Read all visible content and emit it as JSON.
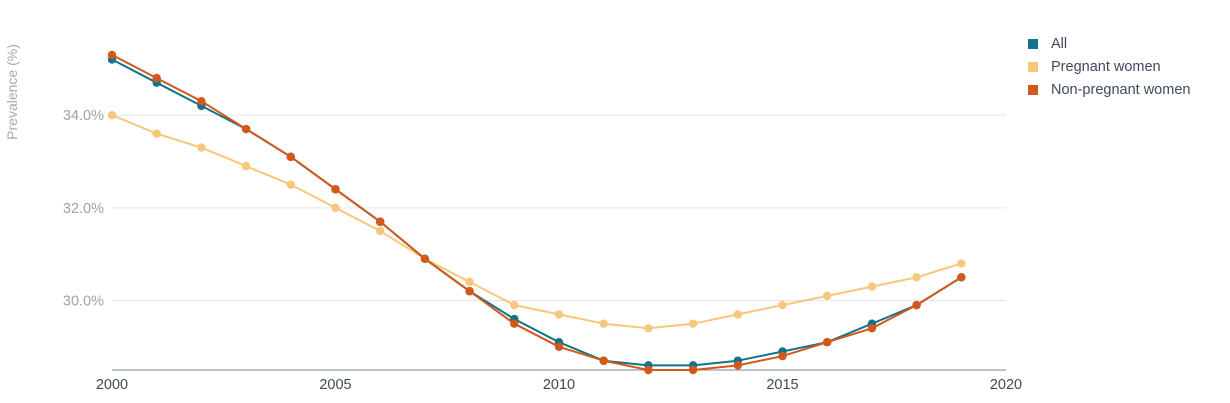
{
  "chart_data": {
    "type": "line",
    "ylabel": "Prevalence (%)",
    "xlabel": "",
    "xlim": [
      2000,
      2020
    ],
    "ylim": [
      28.5,
      35.6
    ],
    "x_ticks": [
      2000,
      2005,
      2010,
      2015,
      2020
    ],
    "y_ticks": [
      {
        "value": 30.0,
        "label": "30.0%"
      },
      {
        "value": 32.0,
        "label": "32.0%"
      },
      {
        "value": 34.0,
        "label": "34.0%"
      }
    ],
    "grid": true,
    "legend_position": "top-right",
    "x": [
      2000,
      2001,
      2002,
      2003,
      2004,
      2005,
      2006,
      2007,
      2008,
      2009,
      2010,
      2011,
      2012,
      2013,
      2014,
      2015,
      2016,
      2017,
      2018,
      2019
    ],
    "series": [
      {
        "name": "All",
        "color": "#13738b",
        "values": [
          35.2,
          34.7,
          34.2,
          33.7,
          33.1,
          32.4,
          31.7,
          30.9,
          30.2,
          29.6,
          29.1,
          28.7,
          28.6,
          28.6,
          28.7,
          28.9,
          29.1,
          29.5,
          29.9,
          30.5
        ]
      },
      {
        "name": "Pregnant women",
        "color": "#f9c77b",
        "values": [
          34.0,
          33.6,
          33.3,
          32.9,
          32.5,
          32.0,
          31.5,
          30.9,
          30.4,
          29.9,
          29.7,
          29.5,
          29.4,
          29.5,
          29.7,
          29.9,
          30.1,
          30.3,
          30.5,
          30.8
        ]
      },
      {
        "name": "Non-pregnant women",
        "color": "#d3581a",
        "values": [
          35.3,
          34.8,
          34.3,
          33.7,
          33.1,
          32.4,
          31.7,
          30.9,
          30.2,
          29.5,
          29.0,
          28.7,
          28.5,
          28.5,
          28.6,
          28.8,
          29.1,
          29.4,
          29.9,
          30.5
        ]
      }
    ]
  }
}
